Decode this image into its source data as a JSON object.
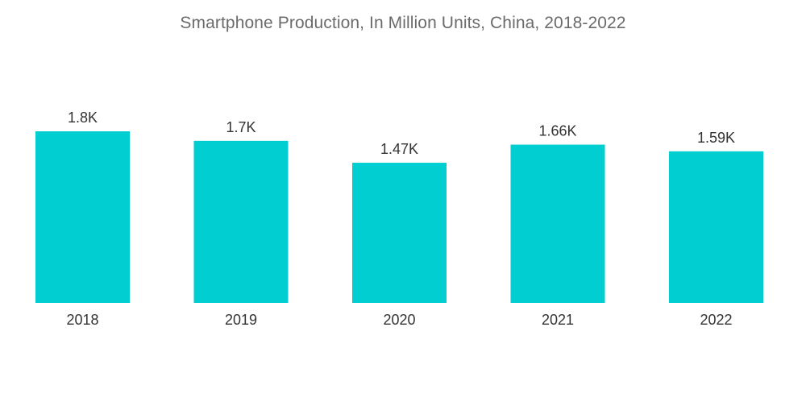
{
  "chart_data": {
    "type": "bar",
    "title": "Smartphone Production, In Million Units, China, 2018-2022",
    "categories": [
      "2018",
      "2019",
      "2020",
      "2021",
      "2022"
    ],
    "values": [
      1800,
      1700,
      1470,
      1660,
      1590
    ],
    "data_labels": [
      "1.8K",
      "1.7K",
      "1.47K",
      "1.66K",
      "1.59K"
    ],
    "xlabel": "",
    "ylabel": "",
    "ylim": [
      0,
      1800
    ],
    "grid": false,
    "bar_color": "#00CED1"
  }
}
